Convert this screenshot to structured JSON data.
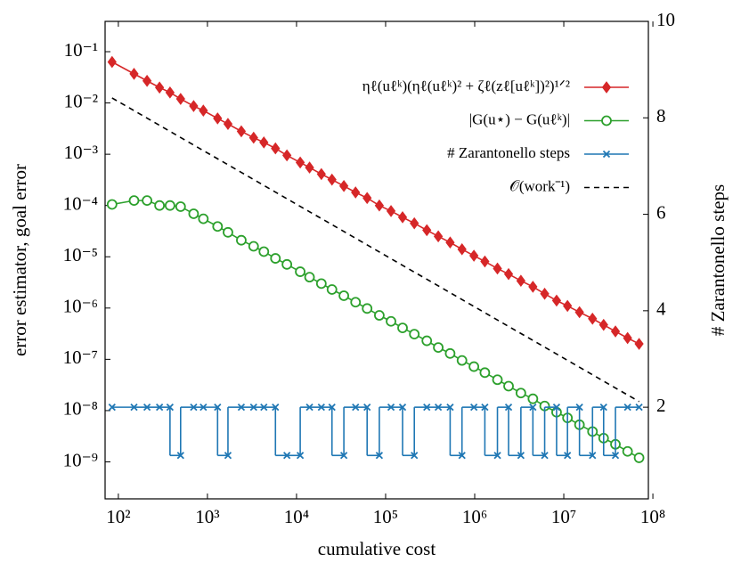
{
  "chart_data": {
    "type": "line",
    "xlabel": "cumulative cost",
    "ylabel": "error estimator, goal error",
    "y2label": "# Zarantonello steps",
    "xscale": "log",
    "yscale": "log",
    "xlim": [
      71,
      89000000
    ],
    "ylim": [
      1.9e-10,
      0.39
    ],
    "y2lim": [
      0.1,
      10
    ],
    "xticks": [
      {
        "value": 100,
        "label": "10²"
      },
      {
        "value": 1000,
        "label": "10³"
      },
      {
        "value": 10000,
        "label": "10⁴"
      },
      {
        "value": 100000,
        "label": "10⁵"
      },
      {
        "value": 1000000,
        "label": "10⁶"
      },
      {
        "value": 10000000,
        "label": "10⁷"
      },
      {
        "value": 100000000,
        "label": "10⁸"
      }
    ],
    "yticks": [
      {
        "value": 0.1,
        "label": "10⁻¹"
      },
      {
        "value": 0.01,
        "label": "10⁻²"
      },
      {
        "value": 0.001,
        "label": "10⁻³"
      },
      {
        "value": 0.0001,
        "label": "10⁻⁴"
      },
      {
        "value": 1e-05,
        "label": "10⁻⁵"
      },
      {
        "value": 1e-06,
        "label": "10⁻⁶"
      },
      {
        "value": 1e-07,
        "label": "10⁻⁷"
      },
      {
        "value": 1e-08,
        "label": "10⁻⁸"
      },
      {
        "value": 1e-09,
        "label": "10⁻⁹"
      }
    ],
    "y2ticks": [
      2,
      4,
      6,
      8,
      10
    ],
    "legend": "top-right",
    "x": [
      85,
      150,
      210,
      290,
      380,
      500,
      700,
      900,
      1300,
      1700,
      2400,
      3300,
      4300,
      5800,
      7800,
      11000,
      14000,
      19000,
      25000,
      34000,
      46000,
      62000,
      85000,
      115000,
      155000,
      210000,
      290000,
      390000,
      530000,
      720000,
      980000,
      1300000,
      1800000,
      2400000,
      3300000,
      4500000,
      6100000,
      8300000,
      11000000,
      15000000,
      21000000,
      28000000,
      38000000,
      52000000,
      70000000
    ],
    "series": [
      {
        "name": "ηℓ(uℓᵏ)(ηℓ(uℓᵏ)² + ζℓ(zℓ[uℓᵏ])²)¹ᐟ²",
        "color": "#d62728",
        "marker": "diamond",
        "values": [
          0.063,
          0.037,
          0.027,
          0.02,
          0.016,
          0.012,
          0.0087,
          0.0071,
          0.005,
          0.0039,
          0.0028,
          0.0021,
          0.0017,
          0.0013,
          0.00095,
          0.00069,
          0.00055,
          0.00041,
          0.00032,
          0.00024,
          0.00018,
          0.00014,
          0.0001,
          7.8e-05,
          5.9e-05,
          4.5e-05,
          3.3e-05,
          2.5e-05,
          1.9e-05,
          1.4e-05,
          1.05e-05,
          8.1e-06,
          5.9e-06,
          4.6e-06,
          3.4e-06,
          2.6e-06,
          1.9e-06,
          1.4e-06,
          1.1e-06,
          8.3e-07,
          6.2e-07,
          4.7e-07,
          3.5e-07,
          2.6e-07,
          2e-07
        ]
      },
      {
        "name": "|G(u⋆) − G(uℓᵏ)|",
        "color": "#2ca02c",
        "marker": "circle",
        "values": [
          0.000105,
          0.000125,
          0.000125,
          0.0001,
          0.0001,
          9.5e-05,
          6.9e-05,
          5.5e-05,
          3.9e-05,
          3e-05,
          2.1e-05,
          1.6e-05,
          1.26e-05,
          9.3e-06,
          7.1e-06,
          5.1e-06,
          4e-06,
          3e-06,
          2.3e-06,
          1.74e-06,
          1.3e-06,
          9.8e-07,
          7.2e-07,
          5.5e-07,
          4.1e-07,
          3.1e-07,
          2.3e-07,
          1.7e-07,
          1.3e-07,
          9.5e-08,
          7.2e-08,
          5.5e-08,
          4e-08,
          3e-08,
          2.2e-08,
          1.7e-08,
          1.23e-08,
          9.3e-09,
          7.2e-09,
          5.3e-09,
          3.9e-09,
          2.9e-09,
          2.2e-09,
          1.6e-09,
          1.2e-09
        ]
      },
      {
        "name": "# Zarantonello steps",
        "color": "#1f77b4",
        "marker": "x",
        "axis": "y2",
        "step": true,
        "values": [
          2,
          2,
          2,
          2,
          2,
          1,
          2,
          2,
          2,
          1,
          2,
          2,
          2,
          2,
          1,
          1,
          2,
          2,
          2,
          1,
          2,
          2,
          1,
          2,
          2,
          1,
          2,
          2,
          2,
          1,
          2,
          2,
          1,
          2,
          1,
          2,
          1,
          2,
          1,
          2,
          1,
          2,
          1,
          2,
          2
        ]
      },
      {
        "name": "𝒪(work⁻¹)",
        "color": "#000000",
        "dash": true,
        "x": [
          85,
          70000000
        ],
        "values": [
          0.0125,
          1.5e-08
        ]
      }
    ]
  }
}
